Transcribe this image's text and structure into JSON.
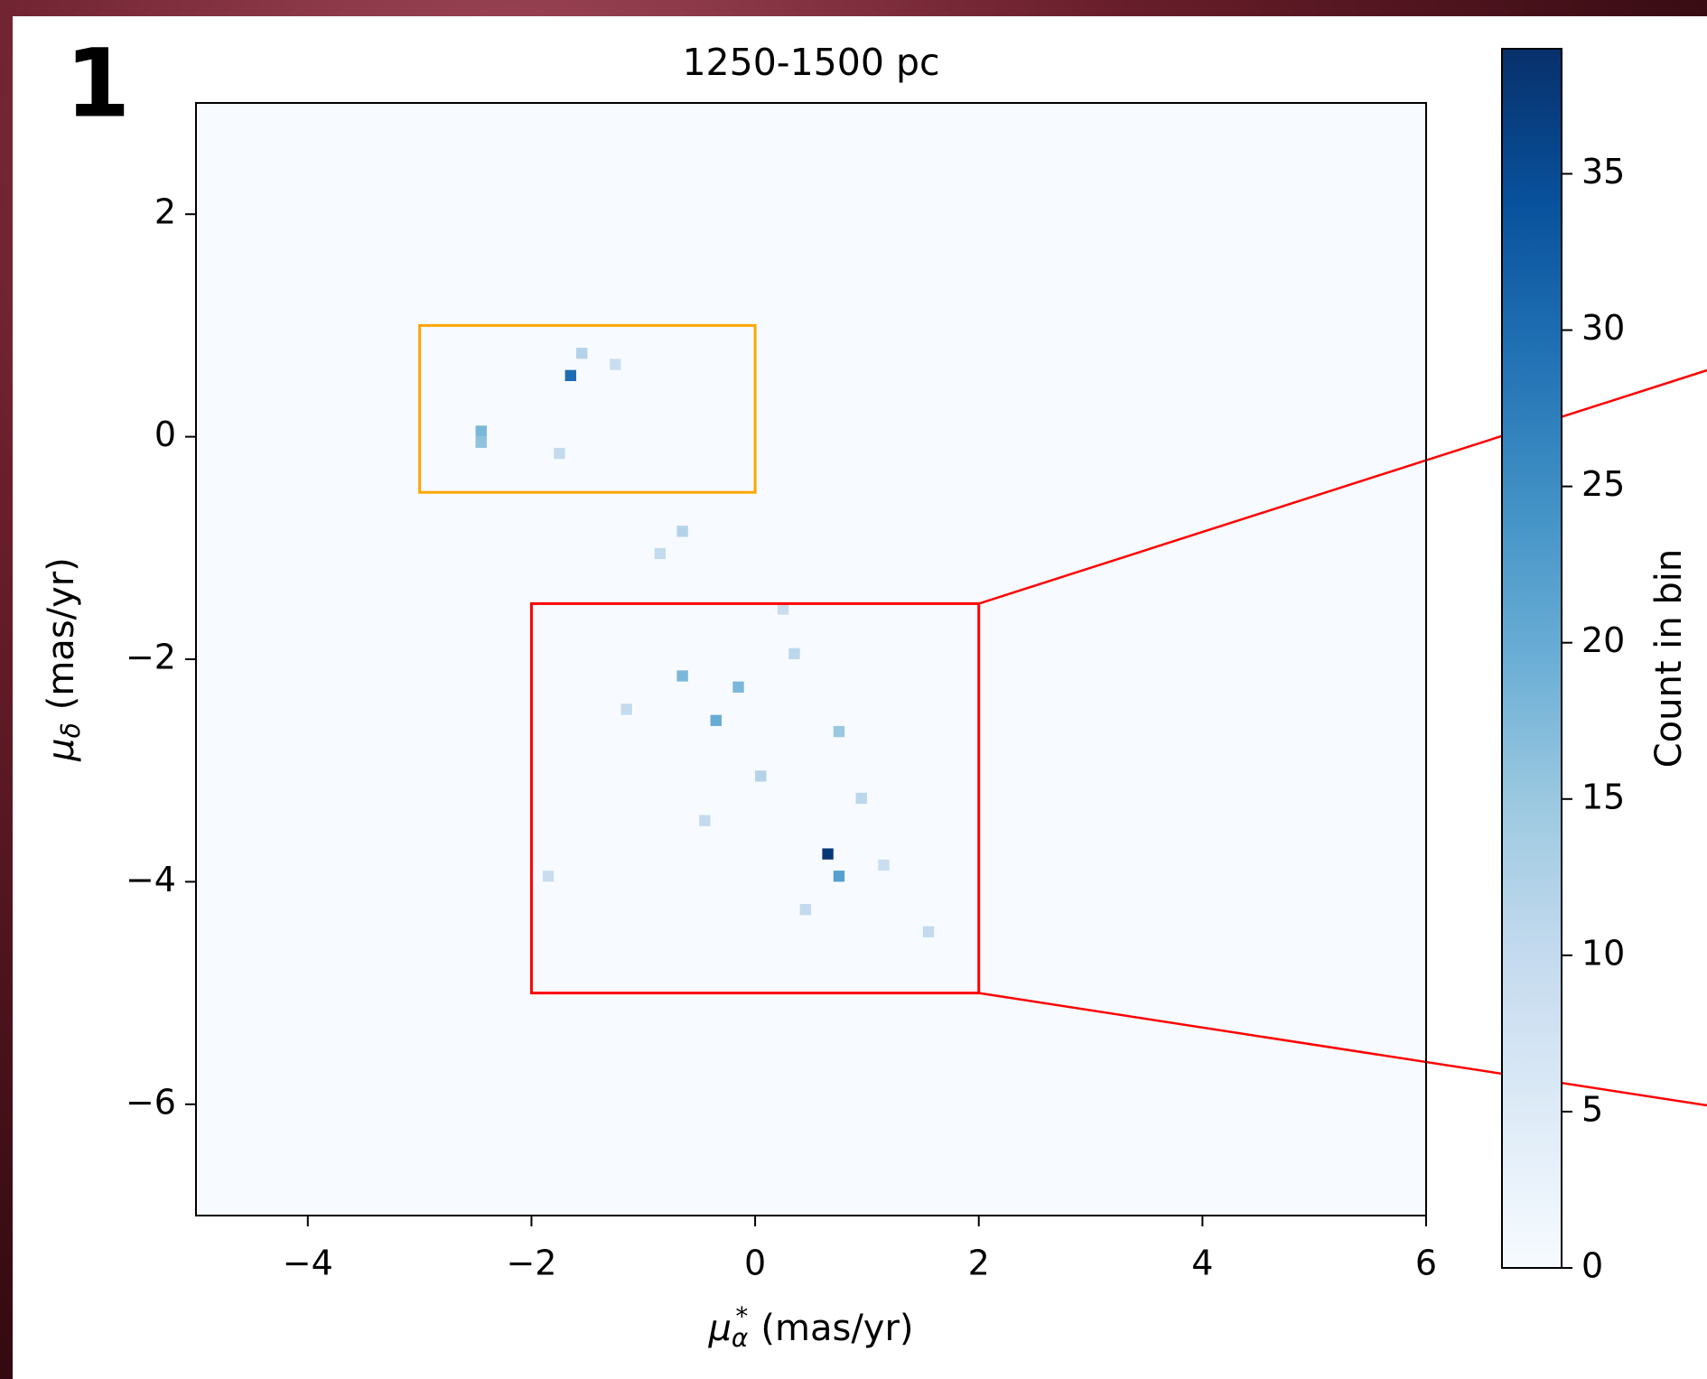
{
  "chart_data": {
    "type": "hist2d",
    "panel_label": "1",
    "title": "1250-1500 pc",
    "xlabel": {
      "symbol": "μ",
      "sub": "α",
      "sup": "*",
      "unit": "(mas/yr)"
    },
    "ylabel": {
      "symbol": "μ",
      "sub": "δ",
      "unit": "(mas/yr)"
    },
    "colorbar_label": "Count in bin",
    "xlim": [
      -5,
      6
    ],
    "ylim": [
      -7,
      3
    ],
    "xticks": [
      {
        "value": -4,
        "label": "−4"
      },
      {
        "value": -2,
        "label": "−2"
      },
      0,
      2,
      4,
      6
    ],
    "yticks": [
      {
        "value": -6,
        "label": "−6"
      },
      {
        "value": -4,
        "label": "−4"
      },
      {
        "value": -2,
        "label": "−2"
      },
      0,
      2
    ],
    "clim": [
      0,
      39
    ],
    "cticks": [
      0,
      5,
      10,
      15,
      20,
      25,
      30,
      35
    ],
    "cmap_colors": [
      "#f7fbff",
      "#deebf7",
      "#c6dbef",
      "#9ecae1",
      "#6baed6",
      "#4292c6",
      "#2171b5",
      "#08519c",
      "#08306b"
    ],
    "bin_size": 0.1,
    "x": [
      -1.7,
      -2.5,
      -2.5,
      0.6,
      0.7,
      -0.7,
      -0.2,
      -0.4,
      0.7,
      -0.7,
      -1.6,
      -1.8,
      1.5,
      0.0,
      -1.3,
      -0.9,
      0.3,
      -0.5,
      0.9,
      0.4,
      -1.9,
      -1.2,
      0.2,
      1.1
    ],
    "y": [
      0.5,
      0.0,
      -0.1,
      -3.8,
      -4.0,
      -2.2,
      -2.3,
      -2.6,
      -2.7,
      -0.9,
      0.7,
      -0.2,
      -4.5,
      -3.1,
      0.6,
      -1.1,
      -2.0,
      -3.5,
      -3.3,
      -4.3,
      -4.0,
      -2.5,
      -1.6,
      -3.9
    ],
    "values": [
      30,
      18,
      16,
      38,
      22,
      18,
      18,
      20,
      15,
      12,
      12,
      10,
      10,
      12,
      9,
      10,
      11,
      10,
      11,
      10,
      9,
      10,
      9,
      9
    ],
    "boxes": [
      {
        "x": [
          -3,
          0
        ],
        "y": [
          -0.5,
          1
        ],
        "color": "#ffa500"
      },
      {
        "x": [
          -2,
          2
        ],
        "y": [
          -5,
          -1.5
        ],
        "color": "#ff0000"
      }
    ]
  }
}
